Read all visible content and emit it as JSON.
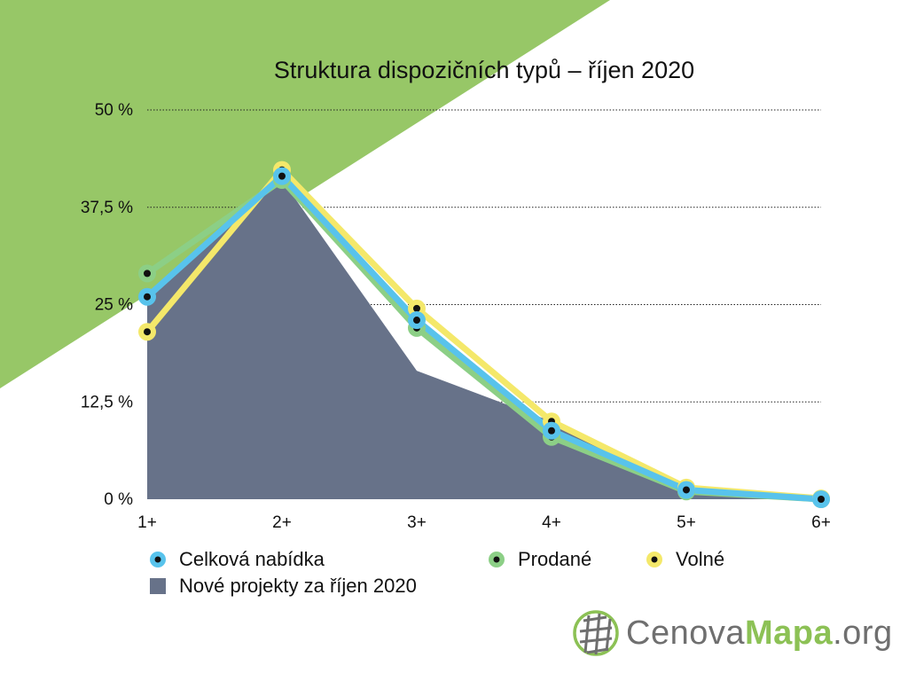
{
  "colors": {
    "background_triangle": "#97c767",
    "area": "#677289",
    "celkova": "#58c3ec",
    "prodane": "#8ccf86",
    "volne": "#f4e86a",
    "grid": "#222222",
    "logo_text": "#6f6f6f",
    "logo_accent": "#8cc155"
  },
  "chart_data": {
    "type": "line",
    "title": "Struktura dispozičních typů – říjen 2020",
    "categories": [
      "1+",
      "2+",
      "3+",
      "4+",
      "5+",
      "6+"
    ],
    "y_ticks": [
      "0 %",
      "12,5 %",
      "25 %",
      "37,5 %",
      "50 %"
    ],
    "y_tick_values": [
      0,
      12.5,
      25,
      37.5,
      50
    ],
    "ylim": [
      0,
      50
    ],
    "grid": true,
    "legend_position": "bottom",
    "series": [
      {
        "name": "Nové projekty za říjen 2020",
        "kind": "area",
        "values": [
          25.5,
          41,
          16.5,
          10,
          1,
          0
        ]
      },
      {
        "name": "Prodané",
        "kind": "line",
        "values": [
          29,
          41,
          22,
          8,
          1,
          0
        ]
      },
      {
        "name": "Volné",
        "kind": "line",
        "values": [
          21.5,
          42.3,
          24.5,
          10,
          1.5,
          0.1
        ]
      },
      {
        "name": "Celková nabídka",
        "kind": "line",
        "values": [
          26,
          41.5,
          23,
          8.8,
          1.2,
          0
        ]
      }
    ]
  },
  "legend": {
    "celkova": "Celková nabídka",
    "prodane": "Prodané",
    "volne": "Volné",
    "nove": "Nové projekty za říjen 2020"
  },
  "logo": {
    "part1": "Cenova",
    "part2": "Mapa",
    "part3": ".org"
  }
}
